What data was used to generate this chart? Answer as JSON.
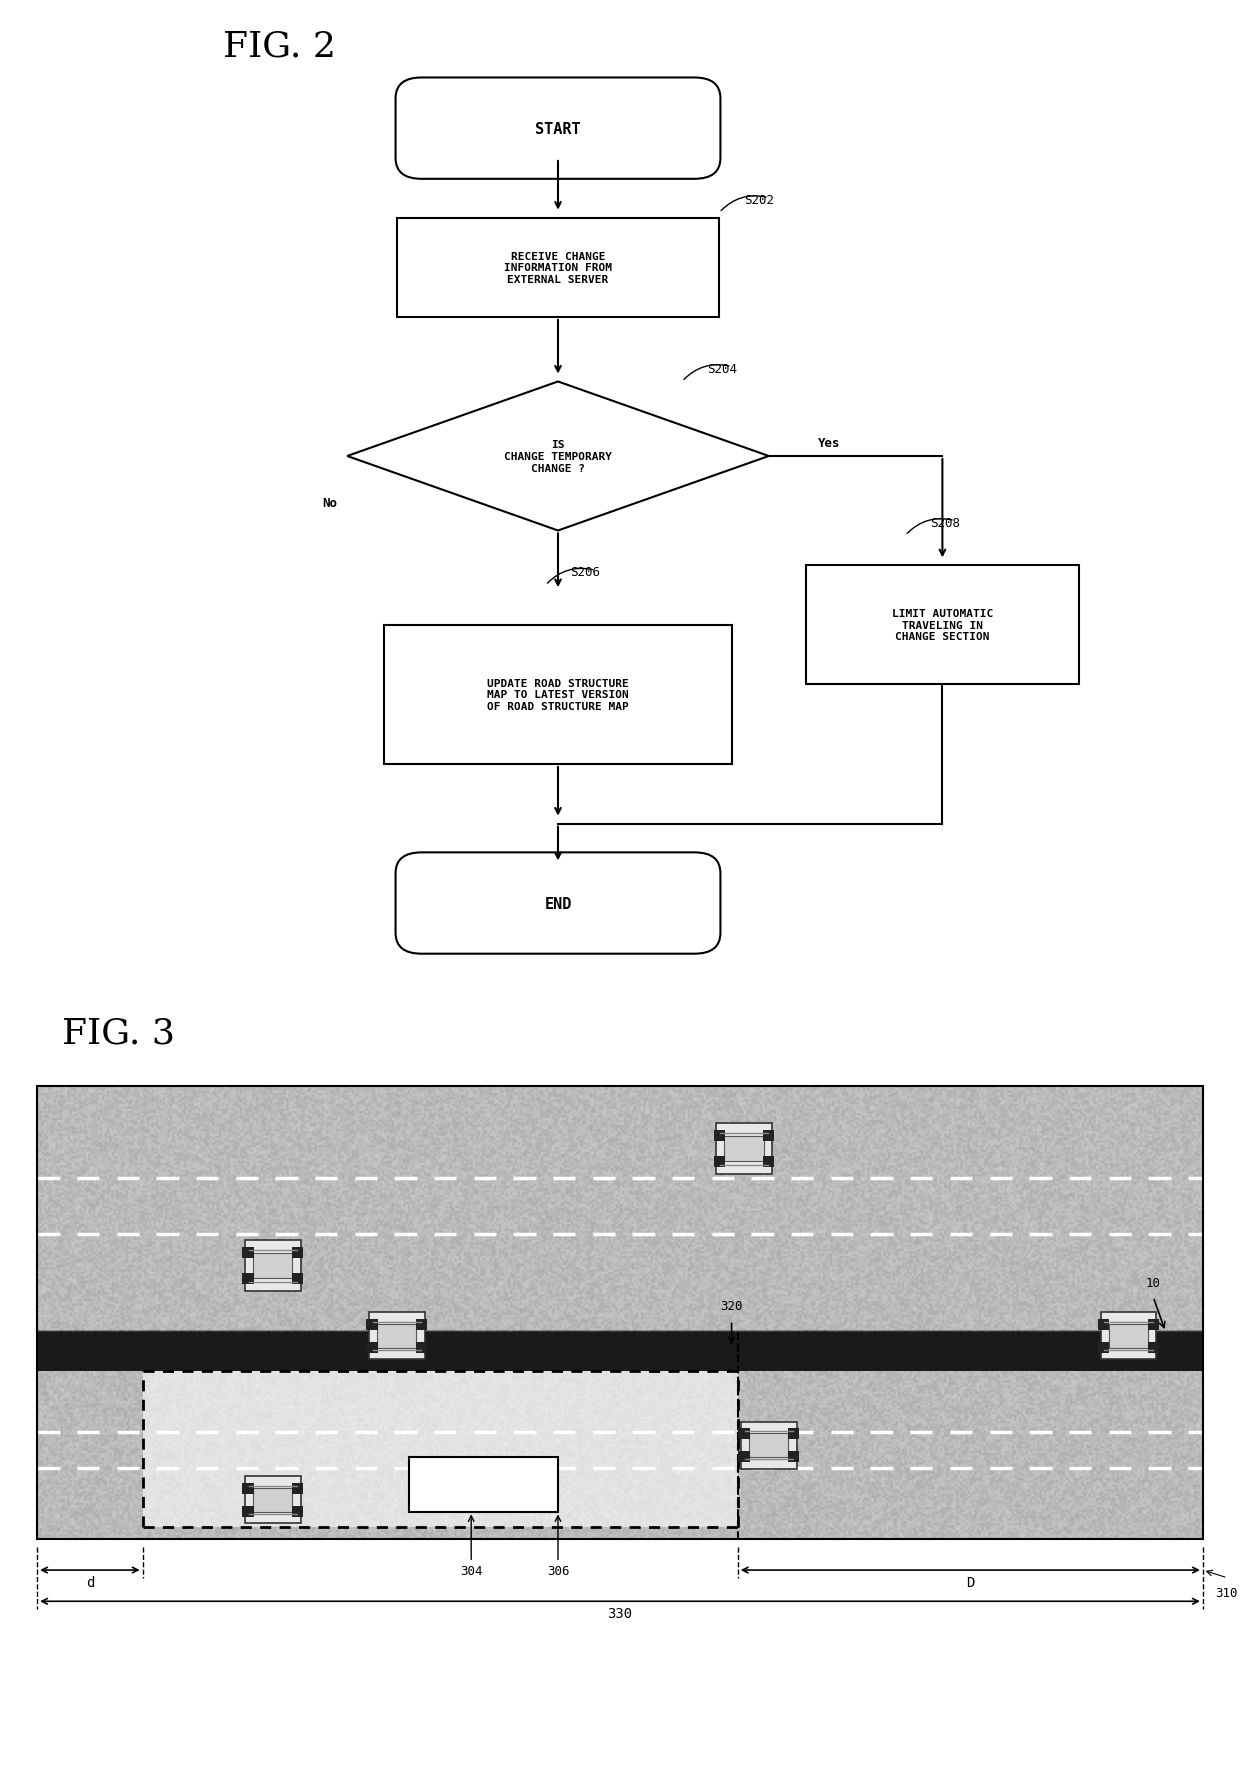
{
  "fig_title_2": "FIG. 2",
  "fig_title_3": "FIG. 3",
  "background_color": "#ffffff",
  "flowchart": {
    "start_text": "START",
    "s202_text": "RECEIVE CHANGE\nINFORMATION FROM\nEXTERNAL SERVER",
    "s202_label": "S202",
    "s204_text": "IS\nCHANGE TEMPORARY\nCHANGE ?",
    "s204_label": "S204",
    "yes_label": "Yes",
    "no_label": "No",
    "s206_text": "UPDATE ROAD STRUCTURE\nMAP TO LATEST VERSION\nOF ROAD STRUCTURE MAP",
    "s206_label": "S206",
    "s208_text": "LIMIT AUTOMATIC\nTRAVELING IN\nCHANGE SECTION",
    "s208_label": "S208",
    "end_text": "END"
  },
  "road": {
    "road_fill": "#c0c0c0",
    "dark_band_color": "#2a2a2a",
    "lane_line_color": "#ffffff",
    "noise_color": "#b0b0b0",
    "label_320": "320",
    "label_10": "10",
    "label_304": "304",
    "label_306": "306",
    "label_310": "310",
    "label_330": "330",
    "label_d": "d",
    "label_D": "D"
  }
}
